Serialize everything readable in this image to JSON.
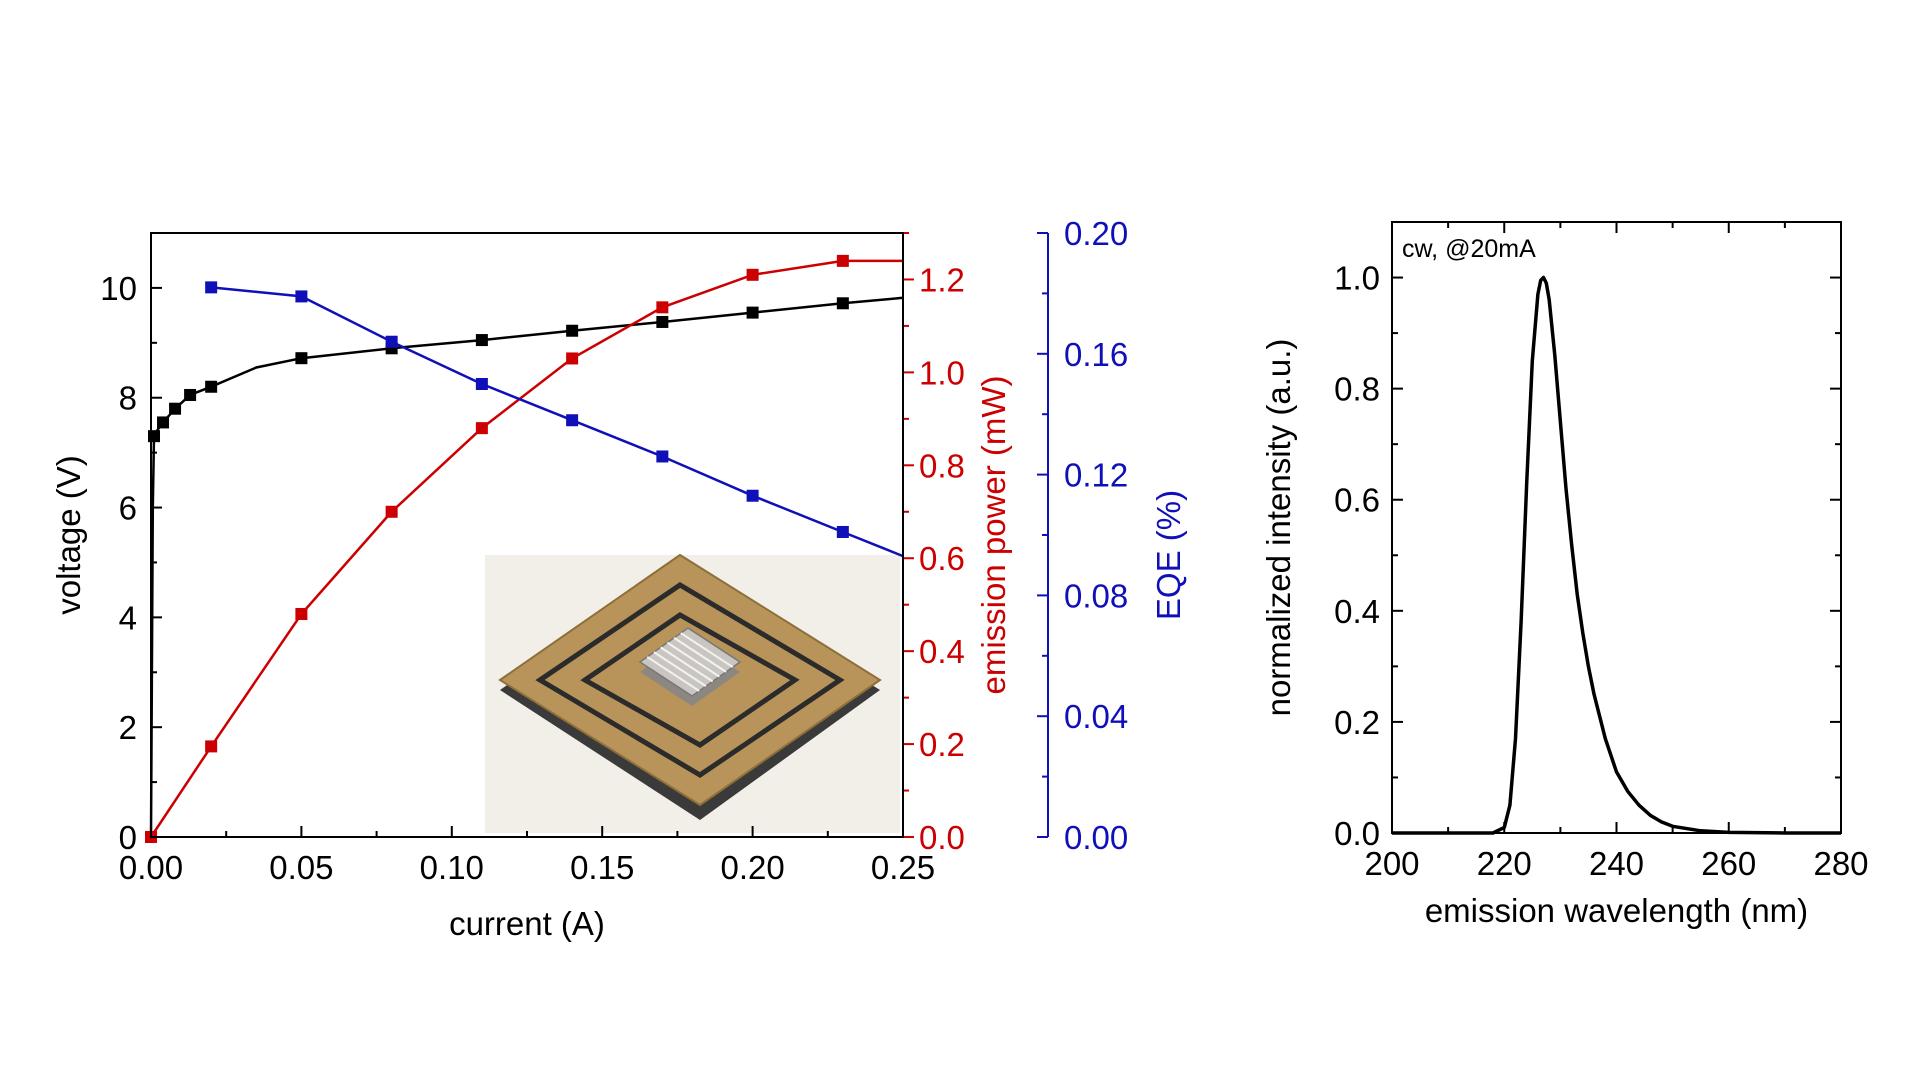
{
  "colors": {
    "voltage": "#000000",
    "power": "#cc0000",
    "eqe": "#1010b8",
    "spectrum": "#000000",
    "axis": "#000000"
  },
  "inset_image": {
    "name": "LED chip package photo",
    "background": "#f2efe9",
    "board_gold": "#b8945a",
    "board_edge": "#3a3a3a",
    "chip": "#c9c6c1"
  },
  "chart_data": [
    {
      "type": "line",
      "xlabel": "current (A)",
      "xlim": [
        0,
        0.25
      ],
      "x_ticks": [
        "0.00",
        "0.05",
        "0.10",
        "0.15",
        "0.20",
        "0.25"
      ],
      "axes": {
        "left": {
          "label": "voltage (V)",
          "ylim": [
            0,
            11
          ],
          "ticks": [
            "0",
            "2",
            "4",
            "6",
            "8",
            "10"
          ]
        },
        "right_inner": {
          "label": "emission power (mW)",
          "ylim": [
            0,
            1.3
          ],
          "ticks": [
            "0.0",
            "0.2",
            "0.4",
            "0.6",
            "0.8",
            "1.0",
            "1.2"
          ]
        },
        "right_outer": {
          "label": "EQE (%)",
          "ylim": [
            0,
            0.2
          ],
          "ticks": [
            "0.00",
            "0.04",
            "0.08",
            "0.12",
            "0.16",
            "0.20"
          ]
        }
      },
      "series": [
        {
          "axis": "left",
          "marker_x": [
            0.001,
            0.004,
            0.008,
            0.013,
            0.02,
            0.05,
            0.08,
            0.11,
            0.14,
            0.17,
            0.2,
            0.23
          ],
          "marker_y": [
            7.3,
            7.55,
            7.8,
            8.05,
            8.2,
            8.72,
            8.9,
            9.05,
            9.22,
            9.38,
            9.55,
            9.72
          ],
          "line_x": [
            0.0,
            0.0003,
            0.0006,
            0.001,
            0.002,
            0.004,
            0.008,
            0.013,
            0.02,
            0.035,
            0.05,
            0.08,
            0.11,
            0.14,
            0.17,
            0.2,
            0.23,
            0.25
          ],
          "line_y": [
            0.0,
            3.0,
            6.0,
            7.3,
            7.4,
            7.55,
            7.8,
            8.05,
            8.2,
            8.55,
            8.72,
            8.9,
            9.05,
            9.22,
            9.38,
            9.55,
            9.72,
            9.82
          ]
        },
        {
          "axis": "right_inner",
          "marker_x": [
            0.0,
            0.02,
            0.05,
            0.08,
            0.11,
            0.14,
            0.17,
            0.2,
            0.23
          ],
          "marker_y": [
            0.0,
            0.195,
            0.48,
            0.7,
            0.88,
            1.03,
            1.14,
            1.21,
            1.24
          ],
          "line_x": [
            0.0,
            0.02,
            0.05,
            0.08,
            0.11,
            0.14,
            0.17,
            0.2,
            0.23,
            0.25
          ],
          "line_y": [
            0.0,
            0.195,
            0.48,
            0.7,
            0.88,
            1.03,
            1.14,
            1.21,
            1.24,
            1.24
          ]
        },
        {
          "axis": "right_outer",
          "marker_x": [
            0.02,
            0.05,
            0.08,
            0.11,
            0.14,
            0.17,
            0.2,
            0.23
          ],
          "marker_y": [
            0.182,
            0.179,
            0.164,
            0.15,
            0.138,
            0.126,
            0.113,
            0.101
          ],
          "line_x": [
            0.02,
            0.05,
            0.08,
            0.11,
            0.14,
            0.17,
            0.2,
            0.23,
            0.25
          ],
          "line_y": [
            0.182,
            0.179,
            0.164,
            0.15,
            0.138,
            0.126,
            0.113,
            0.101,
            0.093
          ]
        }
      ]
    },
    {
      "type": "line",
      "xlabel": "emission wavelength (nm)",
      "ylabel": "normalized intensity (a.u.)",
      "xlim": [
        200,
        280
      ],
      "ylim": [
        0,
        1.1
      ],
      "x_ticks": [
        "200",
        "220",
        "240",
        "260",
        "280"
      ],
      "y_ticks": [
        "0.0",
        "0.2",
        "0.4",
        "0.6",
        "0.8",
        "1.0"
      ],
      "annotation": "cw, @20mA",
      "series": [
        {
          "x": [
            200,
            218,
            220,
            221,
            222,
            223,
            224,
            225,
            226,
            226.5,
            227,
            227.5,
            228,
            229,
            230,
            231,
            232,
            233,
            234,
            235,
            236,
            238,
            240,
            242,
            244,
            246,
            248,
            250,
            255,
            260,
            270,
            280
          ],
          "y": [
            0.0,
            0.0,
            0.01,
            0.05,
            0.17,
            0.38,
            0.63,
            0.85,
            0.97,
            0.995,
            1.0,
            0.99,
            0.96,
            0.86,
            0.74,
            0.62,
            0.52,
            0.43,
            0.36,
            0.3,
            0.25,
            0.17,
            0.11,
            0.075,
            0.05,
            0.032,
            0.02,
            0.012,
            0.004,
            0.001,
            0.0,
            0.0
          ]
        }
      ]
    }
  ]
}
